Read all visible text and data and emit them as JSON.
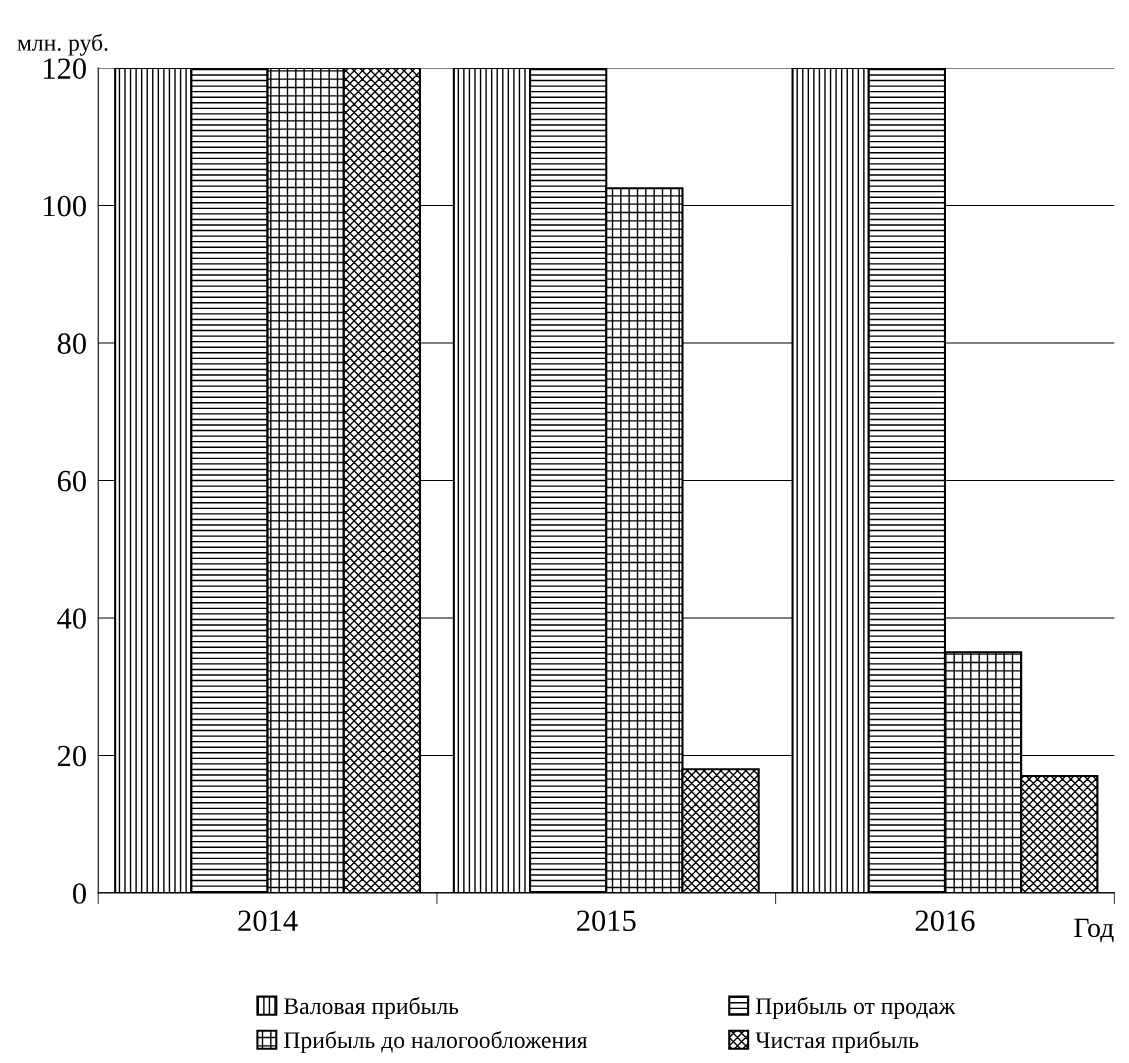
{
  "chart_data": {
    "type": "bar",
    "ylabel": "млн. руб.",
    "xlabel": "Год",
    "categories": [
      "2014",
      "2015",
      "2016"
    ],
    "series": [
      {
        "name": "Валовая прибыль",
        "color": "#000000",
        "values": [
          120,
          120,
          120
        ]
      },
      {
        "name": "Прибыль от продаж",
        "color": "#000000",
        "values": [
          120,
          120,
          120
        ]
      },
      {
        "name": "Прибыль до налогообложения",
        "color": "#000000",
        "values": [
          120,
          102.5,
          35
        ]
      },
      {
        "name": "Чистая прибыль",
        "color": "#000000",
        "values": [
          120,
          18,
          17
        ]
      }
    ],
    "ylim": [
      0,
      120
    ],
    "yticks": [
      0,
      20,
      40,
      60,
      80,
      100,
      120
    ],
    "grid": "y",
    "legend": "bottom"
  }
}
